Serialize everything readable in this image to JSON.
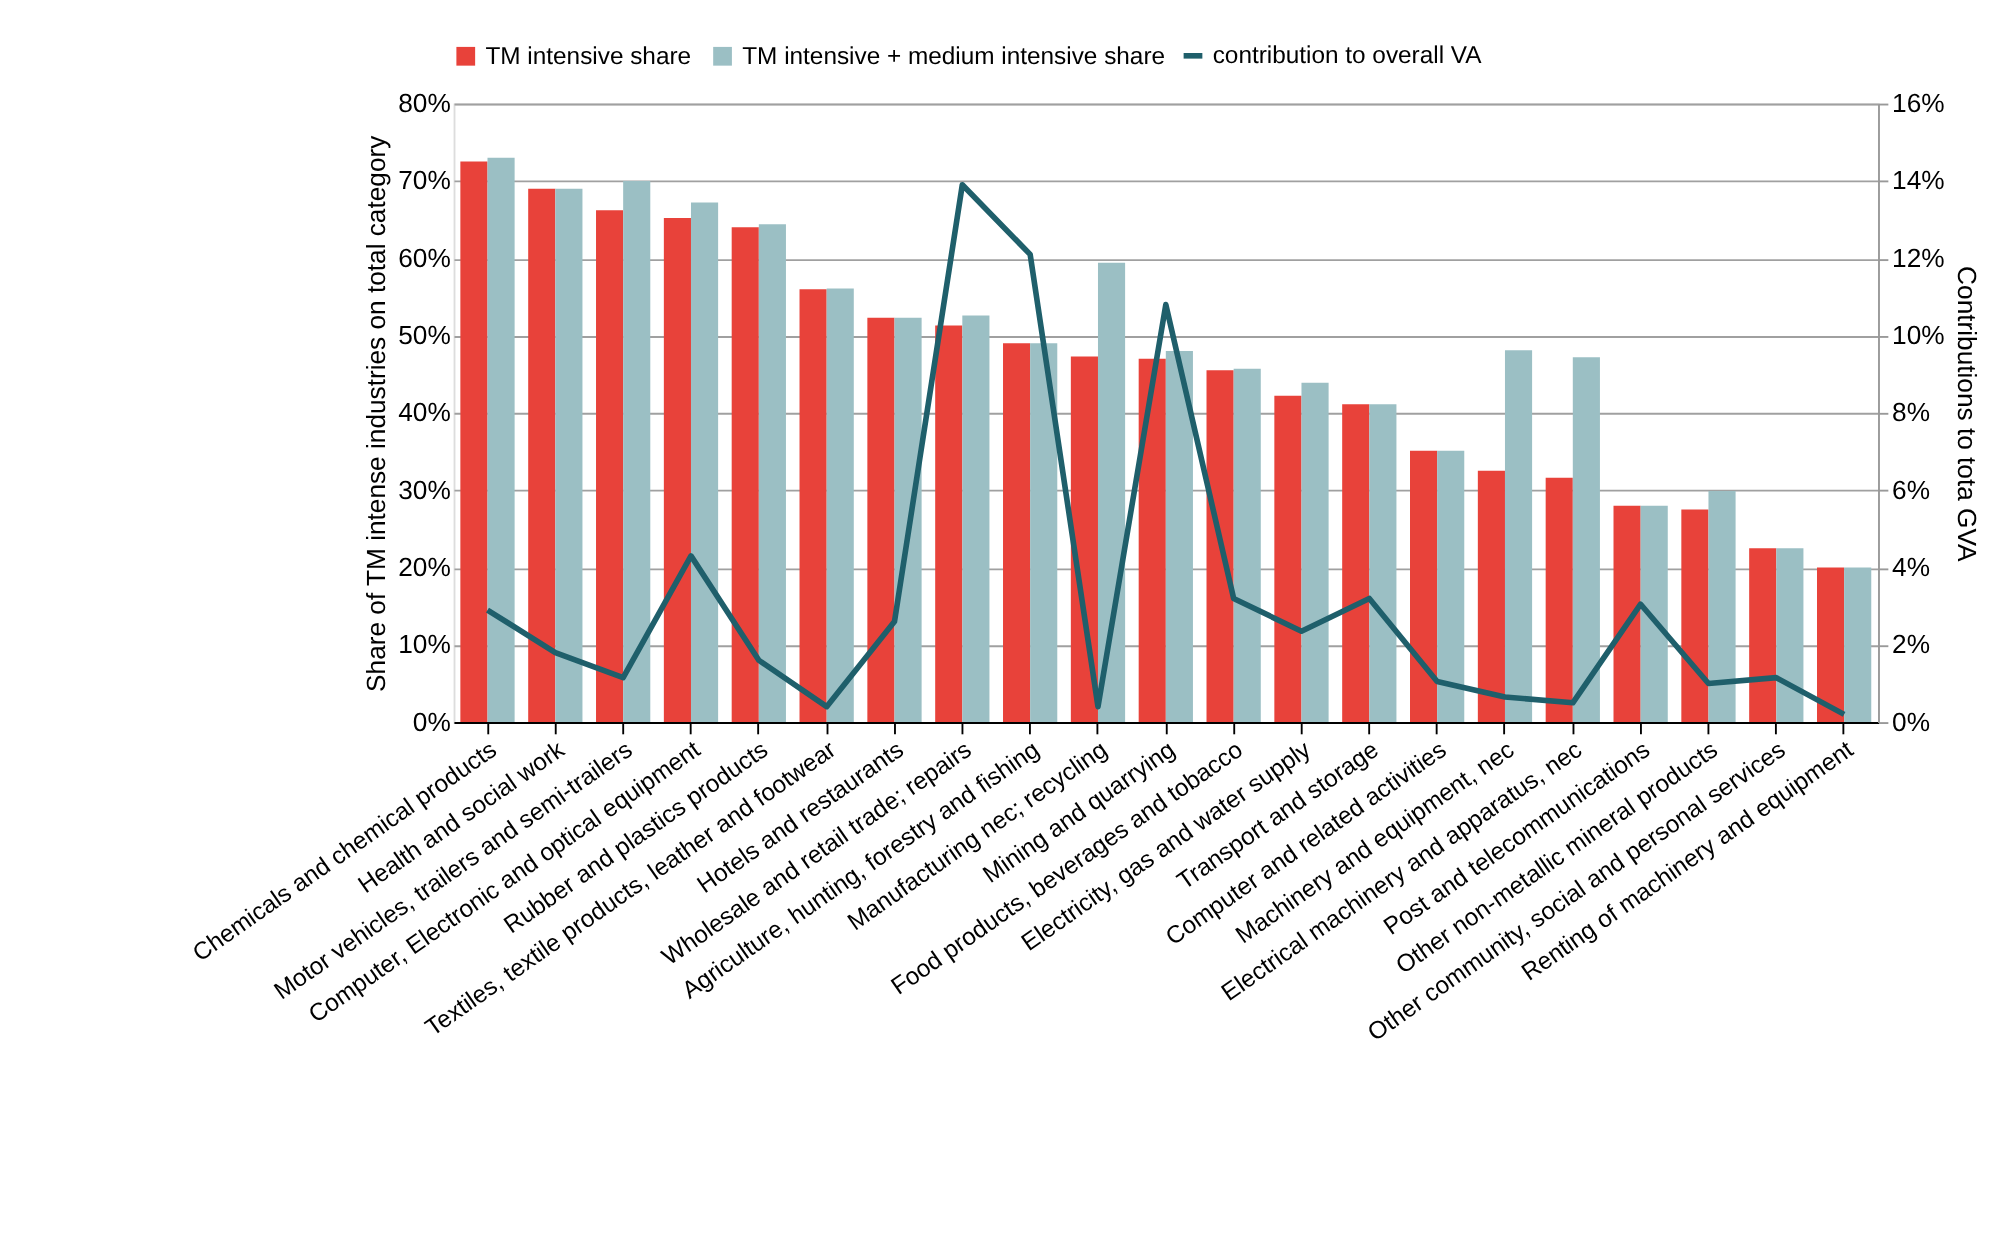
{
  "chart_data": {
    "type": "bar",
    "categories": [
      "Chemicals and chemical products",
      "Health and social work",
      "Motor vehicles, trailers and semi-trailers",
      "Computer, Electronic and optical equipment",
      "Rubber and plastics products",
      "Textiles, textile products, leather and footwear",
      "Hotels and restaurants",
      "Wholesale and retail trade; repairs",
      "Agriculture, hunting, forestry and fishing",
      "Manufacturing nec; recycling",
      "Mining and quarrying",
      "Food products, beverages and tobacco",
      "Electricity, gas and water supply",
      "Transport and storage",
      "Computer and related activities",
      "Machinery and equipment, nec",
      "Electrical machinery and apparatus, nec",
      "Post and telecommunications",
      "Other non-metallic mineral products",
      "Other community, social and personal services",
      "Renting of machinery and equipment"
    ],
    "series": [
      {
        "name": "TM intensive share",
        "color": "#e8423a",
        "values": [
          72.5,
          69,
          66.2,
          65.2,
          64,
          56,
          52.3,
          51.3,
          49,
          47.3,
          47,
          45.5,
          42.2,
          41.1,
          35.1,
          32.5,
          31.6,
          28,
          27.5,
          22.5,
          20
        ]
      },
      {
        "name": "TM intensive + medium intensive share",
        "color": "#9bbfc4",
        "values": [
          73,
          69,
          70,
          67.2,
          64.4,
          56.1,
          52.3,
          52.6,
          49,
          59.4,
          48,
          45.7,
          43.9,
          41.1,
          35.1,
          48.1,
          47.2,
          28,
          29.9,
          22.5,
          20
        ]
      },
      {
        "name": "contribution to overall VA",
        "type": "line",
        "axis": "y2",
        "color": "#1f5f6b",
        "values": [
          2.9,
          1.8,
          1.15,
          4.3,
          1.6,
          0.4,
          2.6,
          13.9,
          12.1,
          0.4,
          10.8,
          3.2,
          2.35,
          3.2,
          1.05,
          0.65,
          0.5,
          3.05,
          1.0,
          1.15,
          0.2
        ]
      }
    ],
    "ylabel": "Share of TM intense industries on total category",
    "y2label": "Contributions to tota GVA",
    "ylim": [
      0,
      80
    ],
    "yticks": [
      {
        "value": 0,
        "label": "0%"
      },
      {
        "value": 10,
        "label": "10%"
      },
      {
        "value": 20,
        "label": "20%"
      },
      {
        "value": 30,
        "label": "30%"
      },
      {
        "value": 40,
        "label": "40%"
      },
      {
        "value": 50,
        "label": "50%"
      },
      {
        "value": 60,
        "label": "60%"
      },
      {
        "value": 70,
        "label": "70%"
      },
      {
        "value": 80,
        "label": "80%"
      }
    ],
    "y2lim": [
      0,
      16
    ],
    "y2ticks": [
      {
        "value": 0,
        "label": "0%"
      },
      {
        "value": 2,
        "label": "2%"
      },
      {
        "value": 4,
        "label": "4%"
      },
      {
        "value": 6,
        "label": "6%"
      },
      {
        "value": 8,
        "label": "8%"
      },
      {
        "value": 10,
        "label": "10%"
      },
      {
        "value": 12,
        "label": "12%"
      },
      {
        "value": 14,
        "label": "14%"
      },
      {
        "value": 16,
        "label": "16%"
      }
    ],
    "grid": "y",
    "legend": "top",
    "marker": "none",
    "line_style": "solid"
  }
}
